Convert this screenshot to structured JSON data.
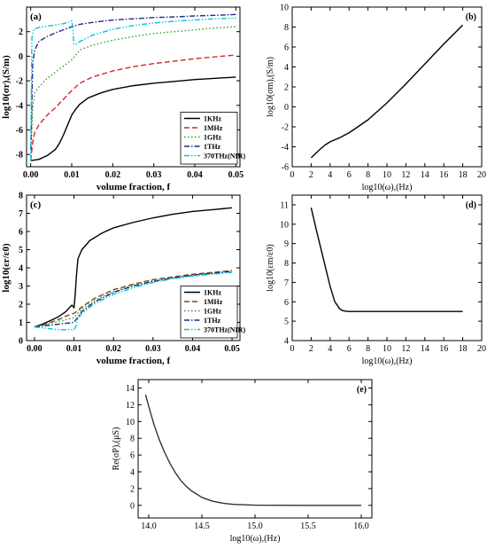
{
  "chart_data": [
    {
      "id": "a",
      "type": "line",
      "panel_label": "(a)",
      "xlabel": "volume fraction, f",
      "ylabel": "log10(σr),(S/m)",
      "xlim": [
        -0.001,
        0.051
      ],
      "ylim": [
        -9,
        4
      ],
      "xticks": [
        0.0,
        0.01,
        0.02,
        0.03,
        0.04,
        0.05
      ],
      "xtick_labels": [
        "0.00",
        "0.01",
        "0.02",
        "0.03",
        "0.04",
        "0.05"
      ],
      "yticks": [
        -8,
        -6,
        -4,
        -2,
        0,
        2
      ],
      "ytick_labels": [
        "-8",
        "-6",
        "-4",
        "-2",
        "0",
        "2"
      ],
      "legend": {
        "position": "bottom-right",
        "entries": [
          "1KHz",
          "1MHz",
          "1GHz",
          "1THz",
          "370THz(NIR)"
        ]
      },
      "series": [
        {
          "name": "1KHz",
          "color": "#000000",
          "dash": "solid",
          "x": [
            0.0,
            0.002,
            0.004,
            0.006,
            0.007,
            0.008,
            0.009,
            0.0095,
            0.01,
            0.011,
            0.012,
            0.014,
            0.017,
            0.02,
            0.025,
            0.03,
            0.035,
            0.04,
            0.045,
            0.05
          ],
          "y": [
            -8.5,
            -8.4,
            -8.1,
            -7.6,
            -7.1,
            -6.4,
            -5.6,
            -5.2,
            -4.8,
            -4.3,
            -3.9,
            -3.4,
            -3.0,
            -2.7,
            -2.4,
            -2.2,
            -2.05,
            -1.9,
            -1.8,
            -1.7
          ]
        },
        {
          "name": "1MHz",
          "color": "#d62728",
          "dash": "long",
          "x": [
            0.0,
            0.0005,
            0.001,
            0.002,
            0.004,
            0.006,
            0.008,
            0.01,
            0.011,
            0.012,
            0.015,
            0.02,
            0.025,
            0.03,
            0.035,
            0.04,
            0.045,
            0.05
          ],
          "y": [
            -8.5,
            -7.0,
            -6.2,
            -5.6,
            -4.8,
            -4.2,
            -3.5,
            -2.8,
            -2.5,
            -2.2,
            -1.7,
            -1.2,
            -0.85,
            -0.6,
            -0.4,
            -0.2,
            -0.05,
            0.1
          ]
        },
        {
          "name": "1GHz",
          "color": "#2ca02c",
          "dash": "dot",
          "x": [
            0.0,
            0.0005,
            0.001,
            0.002,
            0.004,
            0.006,
            0.008,
            0.01,
            0.011,
            0.012,
            0.015,
            0.02,
            0.025,
            0.03,
            0.035,
            0.04,
            0.045,
            0.05
          ],
          "y": [
            -8.5,
            -4.0,
            -3.0,
            -2.5,
            -1.8,
            -1.3,
            -0.8,
            -0.3,
            0.1,
            0.5,
            0.9,
            1.3,
            1.6,
            1.85,
            2.0,
            2.15,
            2.3,
            2.4
          ]
        },
        {
          "name": "1THz",
          "color": "#1f2a8c",
          "dash": "dashdot",
          "x": [
            0.0,
            0.0005,
            0.001,
            0.002,
            0.004,
            0.006,
            0.008,
            0.01,
            0.011,
            0.012,
            0.015,
            0.02,
            0.025,
            0.03,
            0.035,
            0.04,
            0.045,
            0.05
          ],
          "y": [
            -8.5,
            -0.5,
            0.5,
            1.2,
            1.6,
            1.9,
            2.15,
            2.4,
            2.5,
            2.6,
            2.75,
            2.95,
            3.05,
            3.15,
            3.2,
            3.28,
            3.33,
            3.4
          ]
        },
        {
          "name": "370THz(NIR)",
          "color": "#00c8d2",
          "dash": "dashdotdot",
          "x": [
            0.0,
            0.0003,
            0.0008,
            0.002,
            0.004,
            0.006,
            0.008,
            0.0095,
            0.01,
            0.0103,
            0.0105,
            0.011,
            0.012,
            0.015,
            0.02,
            0.025,
            0.03,
            0.035,
            0.04,
            0.045,
            0.05
          ],
          "y": [
            -8.5,
            1.5,
            2.2,
            2.35,
            2.45,
            2.55,
            2.65,
            2.8,
            2.9,
            2.2,
            1.0,
            0.95,
            1.2,
            1.7,
            2.2,
            2.5,
            2.7,
            2.85,
            2.95,
            3.05,
            3.1
          ]
        }
      ]
    },
    {
      "id": "b",
      "type": "line",
      "panel_label": "(b)",
      "xlabel": "log10(ω),(Hz)",
      "ylabel": "log10(σm),(S/m)",
      "xlim": [
        0,
        20
      ],
      "ylim": [
        -6,
        10
      ],
      "xticks": [
        0,
        2,
        4,
        6,
        8,
        10,
        12,
        14,
        16,
        18,
        20
      ],
      "xtick_labels": [
        "0",
        "2",
        "4",
        "6",
        "8",
        "10",
        "12",
        "14",
        "16",
        "18",
        "20"
      ],
      "yticks": [
        -6,
        -4,
        -2,
        0,
        2,
        4,
        6,
        8,
        10
      ],
      "ytick_labels": [
        "-6",
        "-4",
        "-2",
        "0",
        "2",
        "4",
        "6",
        "8",
        "10"
      ],
      "series": [
        {
          "name": "",
          "color": "#000000",
          "dash": "solid",
          "x": [
            2,
            3,
            3.5,
            4,
            5,
            6,
            8,
            10,
            12,
            14,
            16,
            18
          ],
          "y": [
            -5.1,
            -4.2,
            -3.8,
            -3.5,
            -3.1,
            -2.6,
            -1.3,
            0.4,
            2.3,
            4.3,
            6.3,
            8.2
          ]
        }
      ]
    },
    {
      "id": "c",
      "type": "line",
      "panel_label": "(c)",
      "xlabel": "volume fraction, f",
      "ylabel": "log10(εr/ε0)",
      "xlim": [
        -0.002,
        0.052
      ],
      "ylim": [
        0,
        8
      ],
      "xticks": [
        0.0,
        0.01,
        0.02,
        0.03,
        0.04,
        0.05
      ],
      "xtick_labels": [
        "0.00",
        "0.01",
        "0.02",
        "0.03",
        "0.04",
        "0.05"
      ],
      "yticks": [
        0,
        1,
        2,
        3,
        4,
        5,
        6,
        7,
        8
      ],
      "ytick_labels": [
        "0",
        "1",
        "2",
        "3",
        "4",
        "5",
        "6",
        "7",
        "8"
      ],
      "legend": {
        "position": "bottom-right",
        "entries": [
          "1KHz",
          "1MHz",
          "1GHz",
          "1THz",
          "370THz(NIR)"
        ]
      },
      "series": [
        {
          "name": "1KHz",
          "color": "#000000",
          "dash": "solid",
          "x": [
            0.0,
            0.002,
            0.004,
            0.006,
            0.008,
            0.009,
            0.0095,
            0.01,
            0.0103,
            0.0106,
            0.0108,
            0.011,
            0.012,
            0.014,
            0.017,
            0.02,
            0.025,
            0.03,
            0.035,
            0.04,
            0.045,
            0.05
          ],
          "y": [
            0.75,
            0.9,
            1.1,
            1.3,
            1.6,
            1.85,
            1.95,
            1.8,
            2.5,
            3.5,
            4.0,
            4.5,
            5.0,
            5.5,
            5.9,
            6.2,
            6.5,
            6.75,
            6.95,
            7.1,
            7.2,
            7.3
          ]
        },
        {
          "name": "1MHz",
          "color": "#8b4513",
          "dash": "long",
          "x": [
            0.0,
            0.002,
            0.004,
            0.006,
            0.008,
            0.01,
            0.011,
            0.012,
            0.015,
            0.02,
            0.025,
            0.03,
            0.035,
            0.04,
            0.045,
            0.05
          ],
          "y": [
            0.75,
            0.85,
            1.0,
            1.15,
            1.35,
            1.5,
            1.65,
            1.85,
            2.3,
            2.8,
            3.1,
            3.35,
            3.5,
            3.65,
            3.75,
            3.85
          ]
        },
        {
          "name": "1GHz",
          "color": "#2ca02c",
          "dash": "dot",
          "x": [
            0.0,
            0.002,
            0.004,
            0.006,
            0.008,
            0.01,
            0.011,
            0.012,
            0.015,
            0.02,
            0.025,
            0.03,
            0.035,
            0.04,
            0.045,
            0.05
          ],
          "y": [
            0.75,
            0.85,
            0.95,
            1.05,
            1.15,
            1.25,
            1.5,
            1.75,
            2.2,
            2.7,
            3.05,
            3.3,
            3.45,
            3.6,
            3.7,
            3.8
          ]
        },
        {
          "name": "1THz",
          "color": "#1f2a8c",
          "dash": "dashdot",
          "x": [
            0.0,
            0.002,
            0.004,
            0.006,
            0.008,
            0.01,
            0.011,
            0.012,
            0.015,
            0.02,
            0.025,
            0.03,
            0.035,
            0.04,
            0.045,
            0.05
          ],
          "y": [
            0.75,
            0.8,
            0.85,
            0.9,
            0.95,
            1.0,
            1.3,
            1.6,
            2.1,
            2.65,
            3.0,
            3.25,
            3.45,
            3.6,
            3.7,
            3.8
          ]
        },
        {
          "name": "370THz(NIR)",
          "color": "#00c8d2",
          "dash": "dashdotdot",
          "x": [
            0.0,
            0.002,
            0.004,
            0.006,
            0.008,
            0.01,
            0.0105,
            0.011,
            0.012,
            0.015,
            0.02,
            0.025,
            0.03,
            0.035,
            0.04,
            0.045,
            0.05
          ],
          "y": [
            0.75,
            0.7,
            0.65,
            0.6,
            0.6,
            0.6,
            0.8,
            1.2,
            1.5,
            2.0,
            2.55,
            2.9,
            3.2,
            3.4,
            3.55,
            3.65,
            3.75
          ]
        }
      ]
    },
    {
      "id": "d",
      "type": "line",
      "panel_label": "(d)",
      "xlabel": "log10(ω),(Hz)",
      "ylabel": "log10(εm/ε0)",
      "xlim": [
        0,
        20
      ],
      "ylim": [
        4,
        11.5
      ],
      "xticks": [
        0,
        2,
        4,
        6,
        8,
        10,
        12,
        14,
        16,
        18,
        20
      ],
      "xtick_labels": [
        "0",
        "2",
        "4",
        "6",
        "8",
        "10",
        "12",
        "14",
        "16",
        "18",
        "20"
      ],
      "yticks": [
        4,
        5,
        6,
        7,
        8,
        9,
        10,
        11
      ],
      "ytick_labels": [
        "4",
        "5",
        "6",
        "7",
        "8",
        "9",
        "10",
        "11"
      ],
      "series": [
        {
          "name": "",
          "color": "#000000",
          "dash": "solid",
          "x": [
            2,
            2.5,
            3,
            3.5,
            4,
            4.5,
            5,
            5.3,
            5.6,
            6,
            7,
            8,
            10,
            12,
            14,
            16,
            18
          ],
          "y": [
            10.85,
            9.8,
            8.8,
            7.8,
            6.8,
            6.0,
            5.65,
            5.55,
            5.52,
            5.5,
            5.5,
            5.5,
            5.5,
            5.5,
            5.5,
            5.5,
            5.5
          ]
        }
      ]
    },
    {
      "id": "e",
      "type": "line",
      "panel_label": "(e)",
      "xlabel": "log10(ω),(Hz)",
      "ylabel": "Re(σP),(μS)",
      "xlim": [
        13.9,
        16.1
      ],
      "ylim": [
        -1.5,
        15
      ],
      "xticks": [
        14.0,
        14.5,
        15.0,
        15.5,
        16.0
      ],
      "xtick_labels": [
        "14.0",
        "14.5",
        "15.0",
        "15.5",
        "16.0"
      ],
      "yticks": [
        0,
        2,
        4,
        6,
        8,
        10,
        12,
        14
      ],
      "ytick_labels": [
        "0",
        "2",
        "4",
        "6",
        "8",
        "10",
        "12",
        "14"
      ],
      "series": [
        {
          "name": "",
          "color": "#333333",
          "dash": "solid",
          "x": [
            13.97,
            14.0,
            14.05,
            14.1,
            14.15,
            14.2,
            14.25,
            14.3,
            14.35,
            14.4,
            14.5,
            14.6,
            14.7,
            14.8,
            15.0,
            15.2,
            15.5,
            16.0
          ],
          "y": [
            13.2,
            11.8,
            9.6,
            7.8,
            6.3,
            5.0,
            3.9,
            3.0,
            2.3,
            1.75,
            0.95,
            0.5,
            0.25,
            0.12,
            0.03,
            0.01,
            0.0,
            0.0
          ]
        }
      ]
    }
  ]
}
